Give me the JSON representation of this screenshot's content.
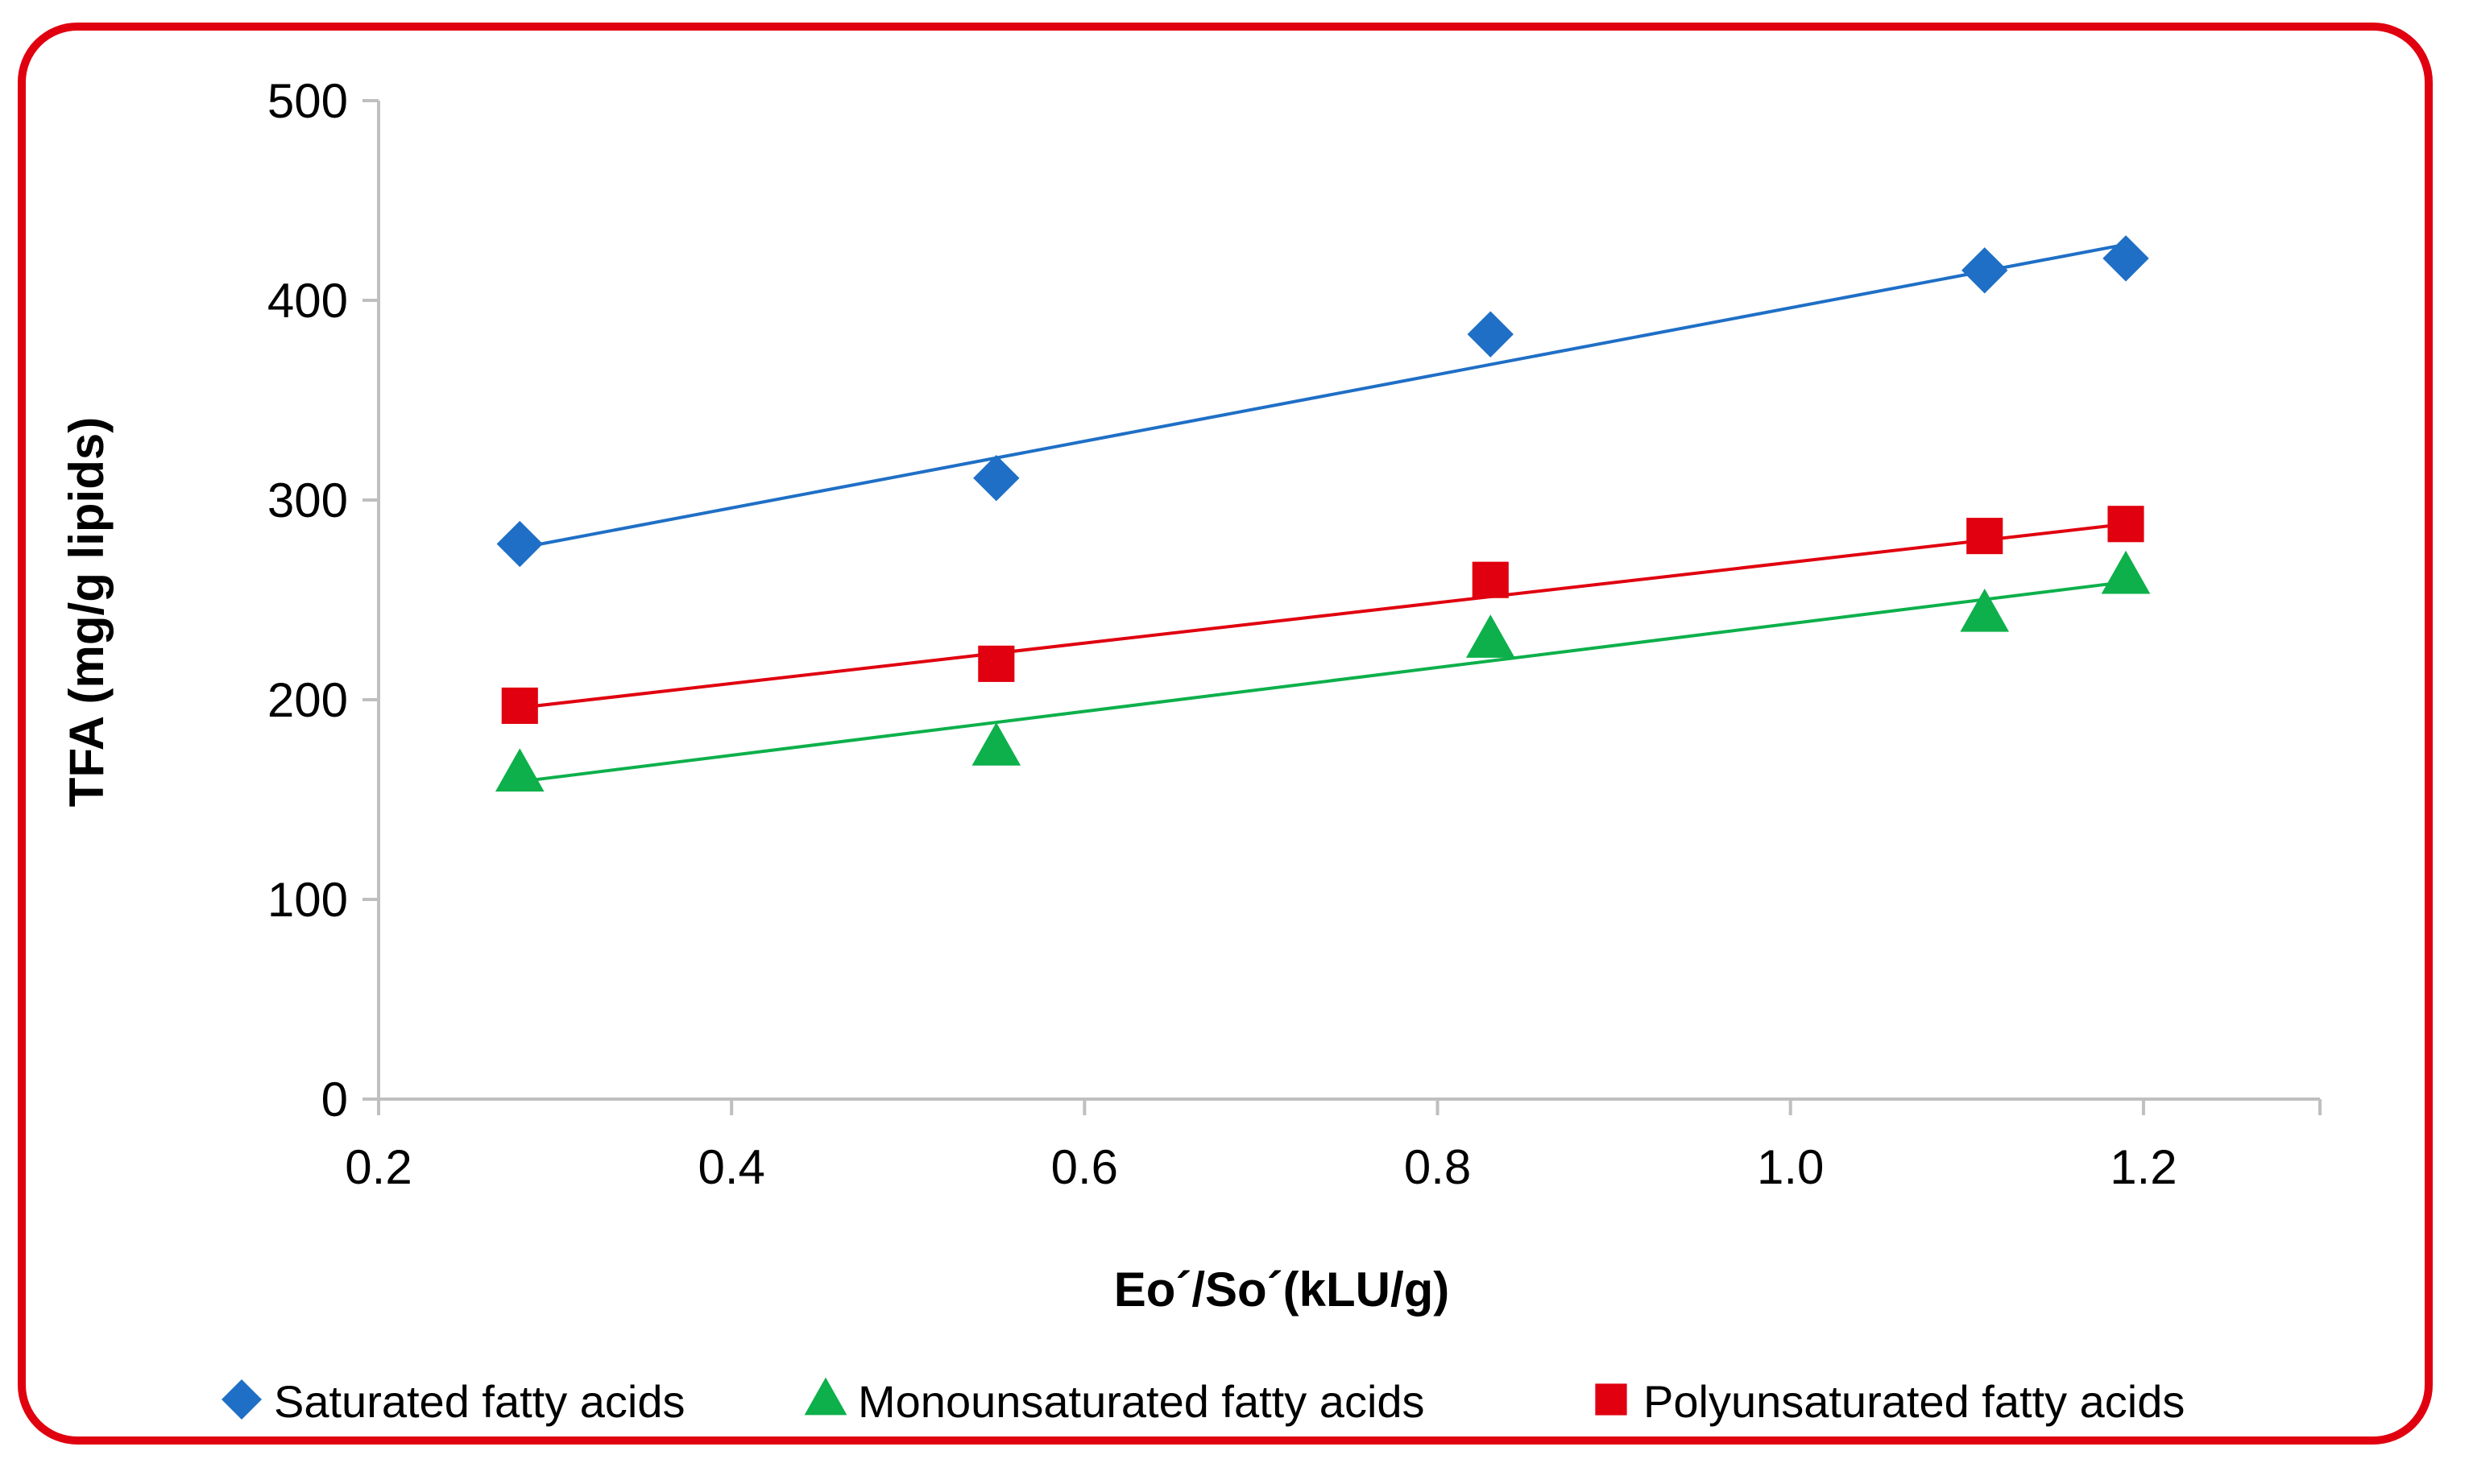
{
  "chart_data": {
    "type": "scatter",
    "title": "",
    "xlabel": "Eo´/So´(kLU/g)",
    "ylabel": "TFA (mg/g lipids)",
    "xlim": [
      0.2,
      1.3
    ],
    "ylim": [
      0,
      500
    ],
    "x_ticks": [
      "0.2",
      "0.4",
      "0.6",
      "0.8",
      "1.0",
      "1.2"
    ],
    "y_ticks": [
      "0",
      "100",
      "200",
      "300",
      "400",
      "500"
    ],
    "grid": false,
    "legend_position": "bottom",
    "series": [
      {
        "name": "Saturated fatty acids",
        "marker": "diamond",
        "color": "#1f6fc6",
        "x": [
          0.28,
          0.55,
          0.83,
          1.11,
          1.19
        ],
        "y": [
          278,
          311,
          383,
          415,
          421
        ],
        "trendline": [
          [
            0.28,
            276
          ],
          [
            1.19,
            428
          ]
        ]
      },
      {
        "name": "Monounsaturated fatty acids",
        "marker": "triangle",
        "color": "#0db04b",
        "x": [
          0.28,
          0.55,
          0.83,
          1.11,
          1.19
        ],
        "y": [
          163,
          176,
          230,
          243,
          262
        ],
        "trendline": [
          [
            0.28,
            159
          ],
          [
            1.19,
            259
          ]
        ]
      },
      {
        "name": "Polyunsaturated fatty acids",
        "marker": "square",
        "color": "#e0000f",
        "x": [
          0.28,
          0.55,
          0.83,
          1.11,
          1.19
        ],
        "y": [
          197,
          218,
          260,
          282,
          288
        ],
        "trendline": [
          [
            0.28,
            196
          ],
          [
            1.19,
            288
          ]
        ]
      }
    ]
  }
}
